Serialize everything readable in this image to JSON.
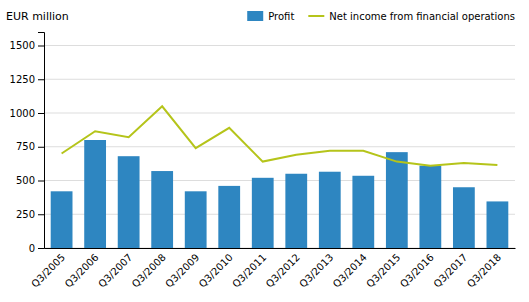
{
  "chart_data": {
    "type": "bar",
    "ylabel": "EUR million",
    "categories": [
      "Q3/2005",
      "Q3/2006",
      "Q3/2007",
      "Q3/2008",
      "Q3/2009",
      "Q3/2010",
      "Q3/2011",
      "Q3/2012",
      "Q3/2013",
      "Q3/2014",
      "Q3/2015",
      "Q3/2016",
      "Q3/2017",
      "Q3/2018"
    ],
    "series": [
      {
        "name": "Profit",
        "type": "bar",
        "color": "#2e86c1",
        "values": [
          420,
          800,
          680,
          570,
          420,
          460,
          520,
          550,
          565,
          535,
          710,
          610,
          450,
          345
        ]
      },
      {
        "name": "Net income from financial operations",
        "type": "line",
        "color": "#b5c41a",
        "values": [
          700,
          865,
          820,
          1050,
          740,
          890,
          640,
          690,
          720,
          720,
          640,
          610,
          630,
          615
        ]
      }
    ],
    "ylim": [
      0,
      1600
    ],
    "yticks": [
      0,
      250,
      500,
      750,
      1000,
      1250,
      1500
    ],
    "grid": true,
    "legend": "upper right"
  }
}
